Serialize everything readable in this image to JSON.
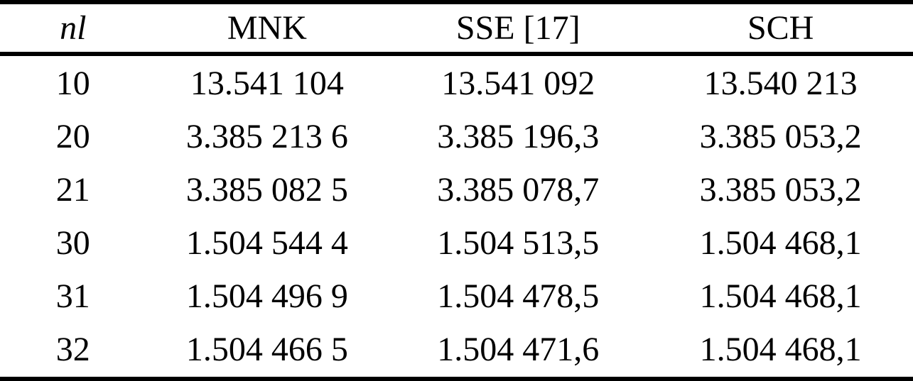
{
  "table": {
    "header": {
      "nl": "nl",
      "mnk": "MNK",
      "sse": "SSE [17]",
      "sch": "SCH"
    },
    "rows": [
      {
        "nl": "10",
        "mnk": "13.541 104",
        "sse": "13.541 092",
        "sch": "13.540 213"
      },
      {
        "nl": "20",
        "mnk": "3.385 213 6",
        "sse": "3.385 196,3",
        "sch": "3.385 053,2"
      },
      {
        "nl": "21",
        "mnk": "3.385 082 5",
        "sse": "3.385 078,7",
        "sch": "3.385 053,2"
      },
      {
        "nl": "30",
        "mnk": "1.504 544 4",
        "sse": "1.504 513,5",
        "sch": "1.504 468,1"
      },
      {
        "nl": "31",
        "mnk": "1.504 496 9",
        "sse": "1.504 478,5",
        "sch": "1.504 468,1"
      },
      {
        "nl": "32",
        "mnk": "1.504 466 5",
        "sse": "1.504 471,6",
        "sch": "1.504 468,1"
      }
    ],
    "colors": {
      "text": "#000000",
      "rule": "#000000",
      "background": "#ffffff"
    }
  },
  "chart_data": {
    "type": "table",
    "columns": [
      "nl",
      "MNK",
      "SSE [17]",
      "SCH"
    ],
    "rows": [
      [
        "10",
        "13.541 104",
        "13.541 092",
        "13.540 213"
      ],
      [
        "20",
        "3.385 213 6",
        "3.385 196,3",
        "3.385 053,2"
      ],
      [
        "21",
        "3.385 082 5",
        "3.385 078,7",
        "3.385 053,2"
      ],
      [
        "30",
        "1.504 544 4",
        "1.504 513,5",
        "1.504 468,1"
      ],
      [
        "31",
        "1.504 496 9",
        "1.504 478,5",
        "1.504 468,1"
      ],
      [
        "32",
        "1.504 466 5",
        "1.504 471,6",
        "1.504 468,1"
      ]
    ],
    "title": "",
    "layout_hints": {
      "style": "booktabs",
      "rules": [
        "top",
        "below-header",
        "bottom"
      ],
      "alignment": "center"
    }
  }
}
